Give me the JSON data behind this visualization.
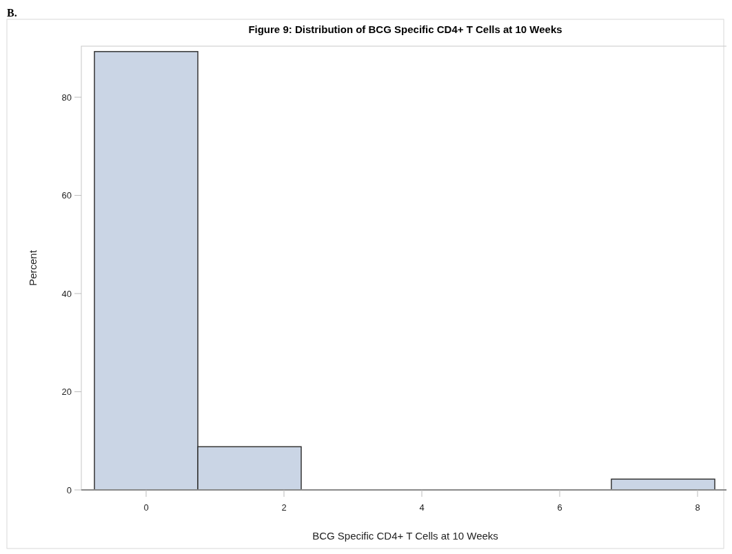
{
  "chart_data": {
    "type": "histogram",
    "title": "Figure 9: Distribution of BCG Specific CD4+ T Cells at 10 Weeks",
    "xlabel": "BCG Specific CD4+ T Cells at 10 Weeks",
    "ylabel": "Percent",
    "annotations": [
      "B."
    ],
    "bins": [
      -0.75,
      0.75,
      2.25,
      3.75,
      5.25,
      6.75,
      8.25
    ],
    "values": [
      89.3,
      8.8,
      0,
      0,
      0,
      2.2
    ],
    "color": "#cad5e5",
    "xlim": [
      -0.94,
      8.46
    ],
    "xticks": [
      0,
      2,
      4,
      6,
      8
    ],
    "ylim": [
      0,
      90.4
    ],
    "yticks": [
      0,
      20,
      40,
      60,
      80
    ],
    "grid": false
  }
}
